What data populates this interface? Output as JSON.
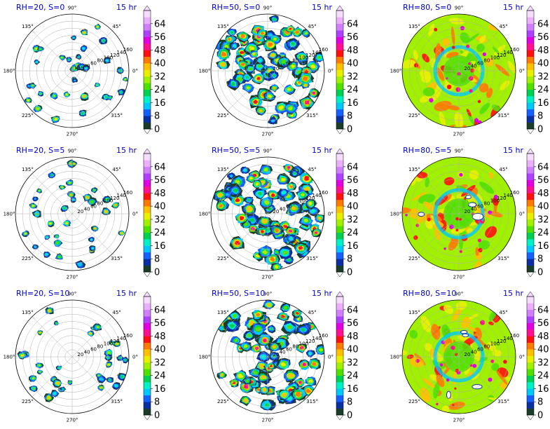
{
  "chart_data": {
    "type": "polar_filled_contour",
    "layout": {
      "rows": 3,
      "cols": 3
    },
    "angle_ticks": [
      "90°",
      "45°",
      "0°",
      "315°",
      "270°",
      "225°",
      "180°",
      "135°"
    ],
    "radial_ticks": [
      "20",
      "40",
      "60",
      "80",
      "100",
      "120",
      "140",
      "160"
    ],
    "rlim": [
      0,
      160
    ],
    "grid": true,
    "colorbar": {
      "ticks": [
        "0",
        "8",
        "16",
        "24",
        "32",
        "40",
        "48",
        "56",
        "64"
      ],
      "range": [
        0,
        72
      ],
      "extend": "both",
      "levels": 18,
      "colors": [
        "#1a3d2a",
        "#0a2fa0",
        "#1560ff",
        "#00c8ff",
        "#00f0c8",
        "#00d050",
        "#50e000",
        "#a0f000",
        "#e8f000",
        "#ffc000",
        "#ff7800",
        "#ff1010",
        "#ff1090",
        "#e000e0",
        "#b040ff",
        "#d080ff",
        "#eab0ff",
        "#f6dcff"
      ]
    },
    "panels": [
      {
        "title": "RH=20, S=0",
        "time": "15 hr",
        "rh": 20,
        "s": 0
      },
      {
        "title": "RH=50, S=0",
        "time": "15 hr",
        "rh": 50,
        "s": 0
      },
      {
        "title": "RH=80, S=0",
        "time": "15 hr",
        "rh": 80,
        "s": 0
      },
      {
        "title": "RH=20, S=5",
        "time": "15 hr",
        "rh": 20,
        "s": 5
      },
      {
        "title": "RH=50, S=5",
        "time": "15 hr",
        "rh": 50,
        "s": 5
      },
      {
        "title": "RH=80, S=5",
        "time": "15 hr",
        "rh": 80,
        "s": 5
      },
      {
        "title": "RH=20, S=10",
        "time": "15 hr",
        "rh": 20,
        "s": 10
      },
      {
        "title": "RH=50, S=10",
        "time": "15 hr",
        "rh": 50,
        "s": 10
      },
      {
        "title": "RH=80, S=10",
        "time": "15 hr",
        "rh": 80,
        "s": 10
      }
    ]
  }
}
